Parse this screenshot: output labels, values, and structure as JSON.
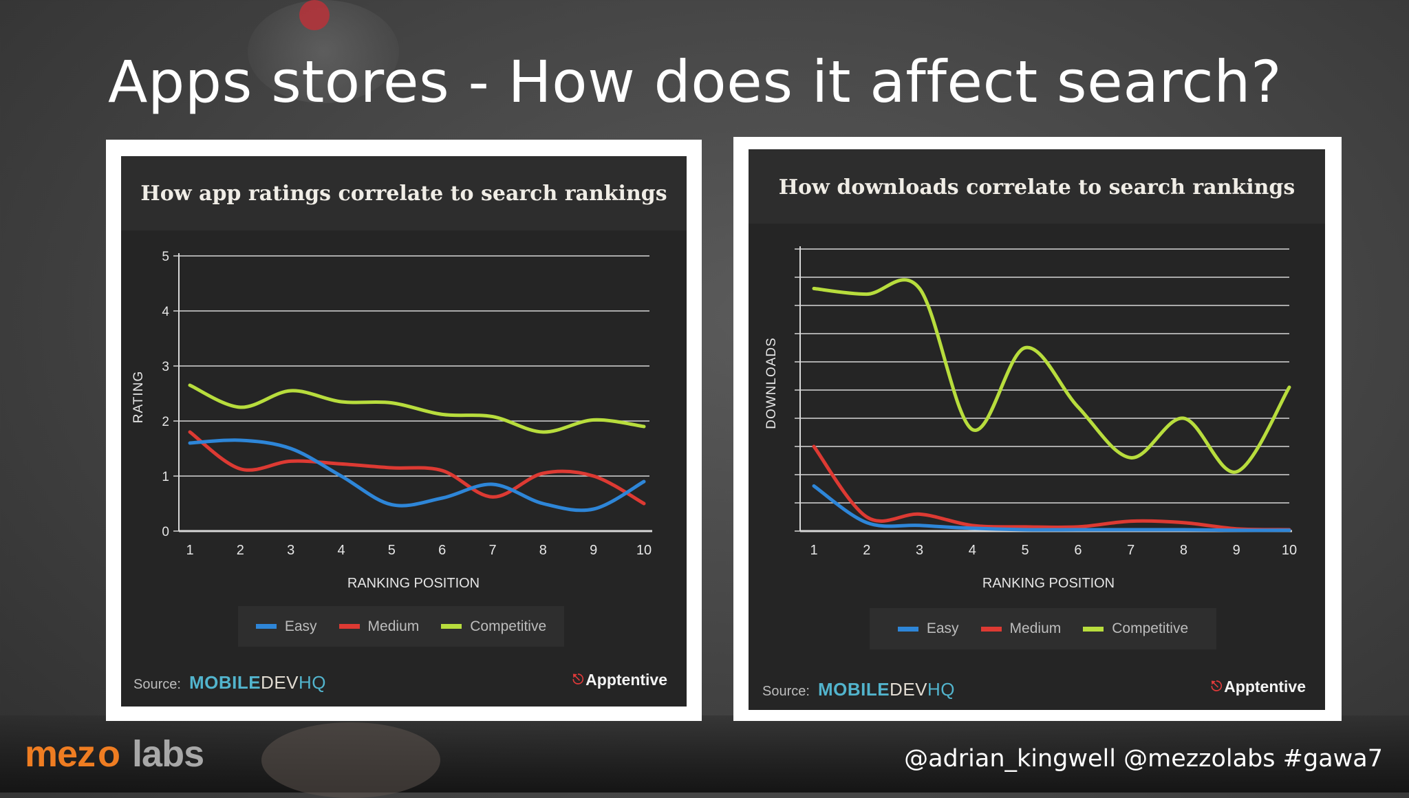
{
  "slide": {
    "title": "Apps stores - How does it affect search?",
    "footer_handles": "@adrian_kingwell @mezzolabs #gawa7",
    "logo": {
      "part1": "mez",
      "part2": "o",
      "part3": "labs"
    }
  },
  "colors": {
    "easy": "#2e86d8",
    "medium": "#dd3a33",
    "competitive": "#b8dd3d",
    "grid": "#d8d8d8",
    "brand_orange": "#ef7d22",
    "brand_teal": "#52b4cd"
  },
  "legend": {
    "easy": "Easy",
    "medium": "Medium",
    "competitive": "Competitive"
  },
  "source": {
    "label": "Source:",
    "brand_main": "MOBILE",
    "brand_dev": "DEV",
    "brand_hq": "HQ",
    "partner": "Apptentive"
  },
  "chart_data": [
    {
      "type": "line",
      "title": "How app ratings correlate to search rankings",
      "xlabel": "RANKING POSITION",
      "ylabel": "RATING",
      "x": [
        1,
        2,
        3,
        4,
        5,
        6,
        7,
        8,
        9,
        10
      ],
      "xticks": [
        "1",
        "2",
        "3",
        "4",
        "5",
        "6",
        "7",
        "8",
        "9",
        "10"
      ],
      "yticks": [
        "0",
        "1",
        "2",
        "3",
        "4",
        "5"
      ],
      "ylim": [
        0,
        5
      ],
      "grid": true,
      "legend_position": "bottom",
      "series": [
        {
          "name": "Easy",
          "color": "#2e86d8",
          "values": [
            1.6,
            1.65,
            1.5,
            1.0,
            0.48,
            0.6,
            0.85,
            0.5,
            0.4,
            0.9
          ]
        },
        {
          "name": "Medium",
          "color": "#dd3a33",
          "values": [
            1.8,
            1.13,
            1.27,
            1.22,
            1.15,
            1.1,
            0.62,
            1.05,
            1.0,
            0.5
          ]
        },
        {
          "name": "Competitive",
          "color": "#b8dd3d",
          "values": [
            2.65,
            2.25,
            2.55,
            2.35,
            2.33,
            2.12,
            2.08,
            1.8,
            2.02,
            1.9
          ]
        }
      ]
    },
    {
      "type": "line",
      "title": "How downloads correlate to search rankings",
      "xlabel": "RANKING POSITION",
      "ylabel": "DOWNLOADS",
      "x": [
        1,
        2,
        3,
        4,
        5,
        6,
        7,
        8,
        9,
        10
      ],
      "xticks": [
        "1",
        "2",
        "3",
        "4",
        "5",
        "6",
        "7",
        "8",
        "9",
        "10"
      ],
      "ylim": [
        0,
        10
      ],
      "grid": true,
      "legend_position": "bottom",
      "series": [
        {
          "name": "Easy",
          "color": "#2e86d8",
          "values": [
            1.6,
            0.3,
            0.2,
            0.1,
            0.05,
            0.05,
            0.05,
            0.05,
            0.03,
            0.03
          ]
        },
        {
          "name": "Medium",
          "color": "#dd3a33",
          "values": [
            3.0,
            0.5,
            0.6,
            0.2,
            0.15,
            0.15,
            0.35,
            0.3,
            0.08,
            0.05
          ]
        },
        {
          "name": "Competitive",
          "color": "#b8dd3d",
          "values": [
            8.6,
            8.4,
            8.6,
            3.6,
            6.5,
            4.4,
            2.6,
            4.0,
            2.1,
            5.1
          ]
        }
      ]
    }
  ]
}
